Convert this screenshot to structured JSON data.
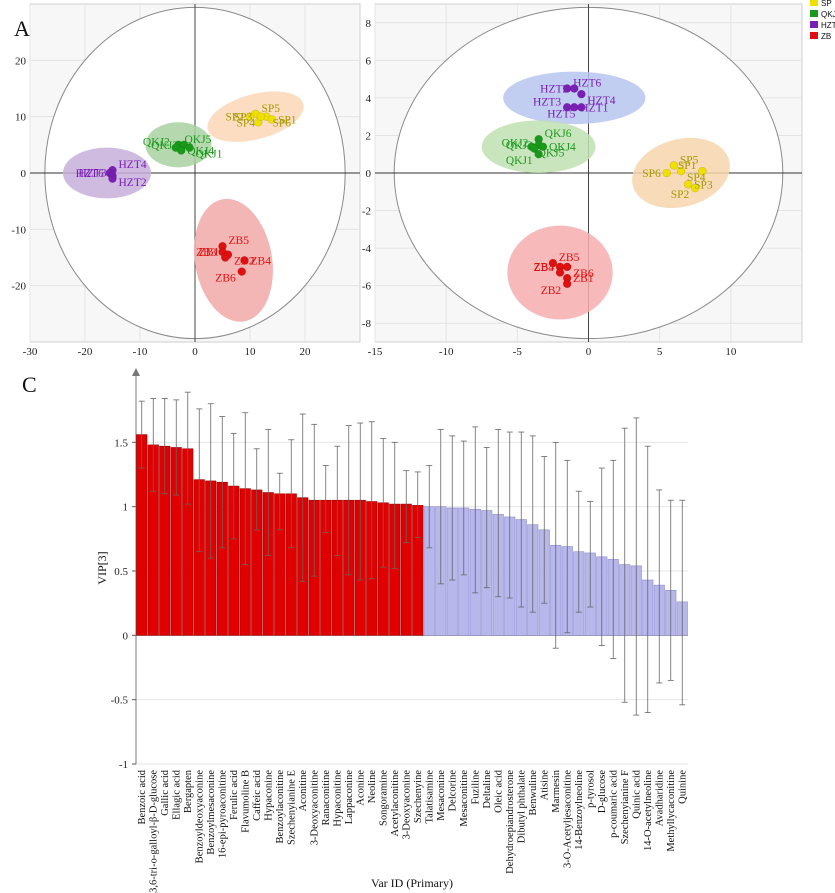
{
  "chart_data": [
    {
      "type": "scatter",
      "panel_label": "A",
      "xlim": [
        -30,
        30
      ],
      "ylim": [
        -30,
        30
      ],
      "x_ticks": [
        -30,
        -20,
        -10,
        0,
        10,
        20
      ],
      "y_ticks": [
        -20,
        -10,
        0,
        10,
        20
      ],
      "groups": [
        {
          "name": "SP",
          "color": "#f0e000",
          "ellipse": {
            "cx": 11,
            "cy": 10,
            "rx": 9,
            "ry": 4,
            "angle": -15,
            "fill": "#fbd7b6"
          },
          "points": [
            {
              "label": "SP5",
              "x": 11,
              "y": 10.5
            },
            {
              "label": "SP2",
              "x": 10,
              "y": 10
            },
            {
              "label": "SP6",
              "x": 13,
              "y": 10
            },
            {
              "label": "SP3",
              "x": 11.5,
              "y": 9
            },
            {
              "label": "SP1",
              "x": 14,
              "y": 9.5
            },
            {
              "label": "SP4",
              "x": 12,
              "y": 10
            }
          ]
        },
        {
          "name": "QKJ",
          "color": "#1a9a1a",
          "ellipse": {
            "cx": -3,
            "cy": 5,
            "rx": 6,
            "ry": 4,
            "angle": 0,
            "fill": "#a9d1a0"
          },
          "points": [
            {
              "label": "QKJ5",
              "x": -3,
              "y": 5
            },
            {
              "label": "QKJ3",
              "x": -2,
              "y": 5
            },
            {
              "label": "QKJ1",
              "x": -1,
              "y": 4.5
            },
            {
              "label": "QKJ2",
              "x": -3.5,
              "y": 4.5
            },
            {
              "label": "QKJ4",
              "x": -2.5,
              "y": 4
            }
          ]
        },
        {
          "name": "HZT",
          "color": "#7a1fb5",
          "ellipse": {
            "cx": -16,
            "cy": 0,
            "rx": 8,
            "ry": 4.5,
            "angle": 0,
            "fill": "#c7aedb"
          },
          "points": [
            {
              "label": "HZT4",
              "x": -15,
              "y": 0.5
            },
            {
              "label": "HZT6",
              "x": -15.5,
              "y": 0
            },
            {
              "label": "HZT2",
              "x": -15,
              "y": -0.5
            },
            {
              "label": "HZT3",
              "x": -15,
              "y": -1
            }
          ]
        },
        {
          "name": "ZB",
          "color": "#e01010",
          "ellipse": {
            "cx": 7,
            "cy": -15.5,
            "rx": 7,
            "ry": 11,
            "angle": -10,
            "fill": "#f2a8a8"
          },
          "points": [
            {
              "label": "ZB5",
              "x": 5,
              "y": -13
            },
            {
              "label": "ZB3",
              "x": 5,
              "y": -14
            },
            {
              "label": "ZB2",
              "x": 6,
              "y": -14.5
            },
            {
              "label": "ZB1",
              "x": 5.5,
              "y": -15
            },
            {
              "label": "ZB4",
              "x": 9,
              "y": -15.5
            },
            {
              "label": "ZB6",
              "x": 8.5,
              "y": -17.5
            }
          ]
        }
      ]
    },
    {
      "type": "scatter",
      "panel_label": "B",
      "xlim": [
        -15,
        15
      ],
      "ylim": [
        -9,
        9
      ],
      "x_ticks": [
        -15,
        -10,
        -5,
        0,
        5,
        10
      ],
      "y_ticks": [
        -8,
        -6,
        -4,
        -2,
        0,
        2,
        4,
        6,
        8
      ],
      "legend": [
        "SP",
        "QKJ",
        "HZT",
        "ZB"
      ],
      "legend_colors": [
        "#f0e000",
        "#1a9a1a",
        "#7a1fb5",
        "#e01010"
      ],
      "groups": [
        {
          "name": "HZT",
          "color": "#7a1fb5",
          "ellipse": {
            "cx": -1,
            "cy": 4,
            "rx": 5,
            "ry": 1.4,
            "angle": 0,
            "fill": "#b7c6ee"
          },
          "points": [
            {
              "label": "HZT6",
              "x": -1.5,
              "y": 4.5
            },
            {
              "label": "HZT2",
              "x": -1,
              "y": 4.5
            },
            {
              "label": "HZT4",
              "x": -0.5,
              "y": 4.2
            },
            {
              "label": "HZT3",
              "x": -1.5,
              "y": 3.5
            },
            {
              "label": "HZT1",
              "x": -1,
              "y": 3.5
            },
            {
              "label": "HZT5",
              "x": -0.5,
              "y": 3.5
            }
          ]
        },
        {
          "name": "QKJ",
          "color": "#1a9a1a",
          "ellipse": {
            "cx": -3.5,
            "cy": 1.4,
            "rx": 4,
            "ry": 1.4,
            "angle": 0,
            "fill": "#bfe0b2"
          },
          "points": [
            {
              "label": "QKJ6",
              "x": -3.5,
              "y": 1.8
            },
            {
              "label": "QKJ3",
              "x": -3.5,
              "y": 1.5
            },
            {
              "label": "QKJ5",
              "x": -4,
              "y": 1.4
            },
            {
              "label": "QKJ2",
              "x": -3.8,
              "y": 1.3
            },
            {
              "label": "QKJ4",
              "x": -3.2,
              "y": 1.4
            },
            {
              "label": "QKJ1",
              "x": -3.5,
              "y": 1
            }
          ]
        },
        {
          "name": "SP",
          "color": "#f0e000",
          "ellipse": {
            "cx": 6.5,
            "cy": 0,
            "rx": 3.5,
            "ry": 1.8,
            "angle": -15,
            "fill": "#f7d5ab"
          },
          "points": [
            {
              "label": "SP5",
              "x": 6,
              "y": 0.4
            },
            {
              "label": "SP6",
              "x": 5.5,
              "y": 0
            },
            {
              "label": "SP4",
              "x": 6.5,
              "y": 0.1
            },
            {
              "label": "SP1",
              "x": 8,
              "y": 0.1
            },
            {
              "label": "SP3",
              "x": 7,
              "y": -0.6
            },
            {
              "label": "SP2",
              "x": 7.5,
              "y": -0.8
            }
          ]
        },
        {
          "name": "ZB",
          "color": "#e01010",
          "ellipse": {
            "cx": -2,
            "cy": -5.3,
            "rx": 3.7,
            "ry": 2.5,
            "angle": 0,
            "fill": "#f6adad"
          },
          "points": [
            {
              "label": "ZB5",
              "x": -2.5,
              "y": -4.8
            },
            {
              "label": "ZB4",
              "x": -2,
              "y": -5
            },
            {
              "label": "ZB6",
              "x": -1.5,
              "y": -5
            },
            {
              "label": "ZB3",
              "x": -2,
              "y": -5.3
            },
            {
              "label": "ZB1",
              "x": -1.5,
              "y": -5.6
            },
            {
              "label": "ZB2",
              "x": -1.5,
              "y": -5.9
            }
          ]
        }
      ]
    },
    {
      "type": "bar",
      "panel_label": "C",
      "ylabel": "VIP[3]",
      "xlabel": "Var ID (Primary)",
      "ylim": [
        -1,
        2
      ],
      "y_ticks": [
        -1,
        -0.5,
        0,
        0.5,
        1,
        1.5
      ],
      "highlight_color": "#e00000",
      "base_color": "#b7b7ec",
      "categories": [
        "Benzoic acid",
        "1,3,6-tri-o-galloyl-β-D-glucose",
        "Gallic acid",
        "Ellagic acid",
        "Bergapten",
        "Benzoyldeoxyaconine",
        "Benzoylmesaconine",
        "16-epi-pyroaconitine",
        "Ferulic acid",
        "Flavumoline B",
        "Caffeic acid",
        "Hypaconine",
        "Benzoylaconitine",
        "Szechenyianine E",
        "Aconitine",
        "3-Deoxyaconitine",
        "Ranaconitine",
        "Hypaconitine",
        "Lappaconine",
        "Aconine",
        "Neoline",
        "Songoramine",
        "Acetylaconitine",
        "3-Deoxyaconine",
        "Szechenyine",
        "Talatisamine",
        "Mesaconine",
        "Delcorine",
        "Mesaconitine",
        "Fuziline",
        "Deltaline",
        "Oleic acid",
        "Dehydroepiandrosterone",
        "Dibutyl phthalate",
        "Benwuline",
        "Atisine",
        "Marmesin",
        "3-O-Acetyljesaconitine",
        "14-Benzoylneoline",
        "p-tyrosol",
        "D-glucose",
        "p-coumaric acid",
        "Szechenyianine F",
        "Quinic acid",
        "14-O-acetylneoline",
        "Avadharidine",
        "Methyllycaconitine",
        "Quinine"
      ],
      "values": [
        1.56,
        1.48,
        1.47,
        1.46,
        1.45,
        1.21,
        1.2,
        1.19,
        1.16,
        1.14,
        1.13,
        1.11,
        1.1,
        1.1,
        1.07,
        1.05,
        1.05,
        1.05,
        1.05,
        1.05,
        1.04,
        1.03,
        1.02,
        1.02,
        1.01,
        1.0,
        1.0,
        0.99,
        0.99,
        0.98,
        0.97,
        0.94,
        0.92,
        0.9,
        0.86,
        0.82,
        0.7,
        0.69,
        0.65,
        0.64,
        0.61,
        0.59,
        0.55,
        0.54,
        0.43,
        0.39,
        0.35,
        0.26
      ],
      "error_low": [
        1.3,
        1.12,
        1.1,
        1.09,
        1.02,
        0.65,
        0.6,
        0.68,
        0.75,
        0.55,
        0.82,
        0.62,
        0.82,
        0.68,
        0.42,
        0.46,
        0.8,
        0.62,
        0.47,
        0.43,
        0.44,
        0.53,
        0.52,
        0.72,
        0.76,
        0.68,
        0.4,
        0.43,
        0.47,
        0.33,
        0.37,
        0.3,
        0.29,
        0.22,
        0.18,
        0.25,
        -0.1,
        0.02,
        0.18,
        0.22,
        -0.08,
        -0.18,
        -0.52,
        -0.62,
        -0.6,
        -0.37,
        -0.35,
        -0.54
      ],
      "error_high": [
        1.82,
        1.84,
        1.84,
        1.83,
        1.89,
        1.76,
        1.8,
        1.7,
        1.57,
        1.73,
        1.45,
        1.6,
        1.26,
        1.52,
        1.72,
        1.64,
        1.32,
        1.47,
        1.63,
        1.65,
        1.66,
        1.53,
        1.5,
        1.28,
        1.27,
        1.32,
        1.6,
        1.55,
        1.51,
        1.62,
        1.46,
        1.6,
        1.58,
        1.58,
        1.55,
        1.39,
        1.5,
        1.36,
        1.12,
        1.04,
        1.3,
        1.36,
        1.61,
        1.69,
        1.47,
        1.13,
        1.05,
        1.05
      ],
      "highlight_count": 25
    }
  ]
}
